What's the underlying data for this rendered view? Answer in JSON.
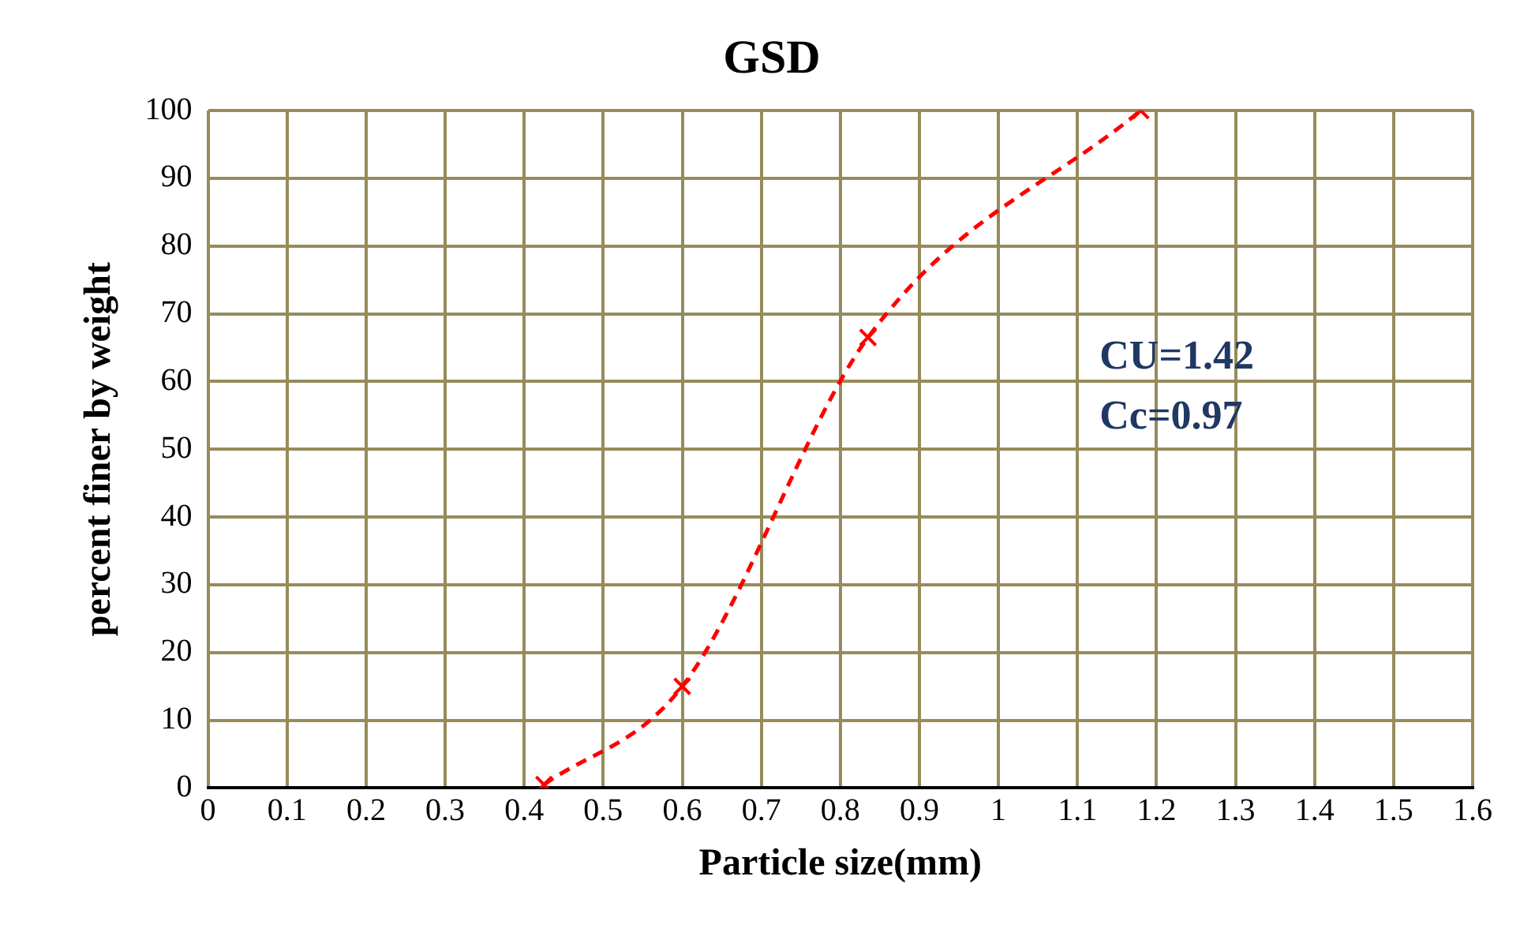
{
  "chart_data": {
    "type": "line",
    "title": "GSD",
    "xlabel": "Particle size(mm)",
    "ylabel": "percent finer by weight",
    "series": [
      {
        "color": "#ff0000",
        "x": [
          0.425,
          0.6,
          0.835,
          1.18
        ],
        "values": [
          0.5,
          15,
          66.5,
          100
        ]
      }
    ],
    "xlim": [
      0,
      1.6
    ],
    "xticks": [
      0,
      0.1,
      0.2,
      0.3,
      0.4,
      0.5,
      0.6,
      0.7,
      0.8,
      0.9,
      1,
      1.1,
      1.2,
      1.3,
      1.4,
      1.5,
      1.6
    ],
    "ylim": [
      0,
      100
    ],
    "yticks": [
      0,
      10,
      20,
      30,
      40,
      50,
      60,
      70,
      80,
      90,
      100
    ],
    "grid": true,
    "legend": false,
    "marker": "cross",
    "line_style": "dashed",
    "annotations": [
      "CU=1.42",
      "Cc=0.97"
    ]
  }
}
